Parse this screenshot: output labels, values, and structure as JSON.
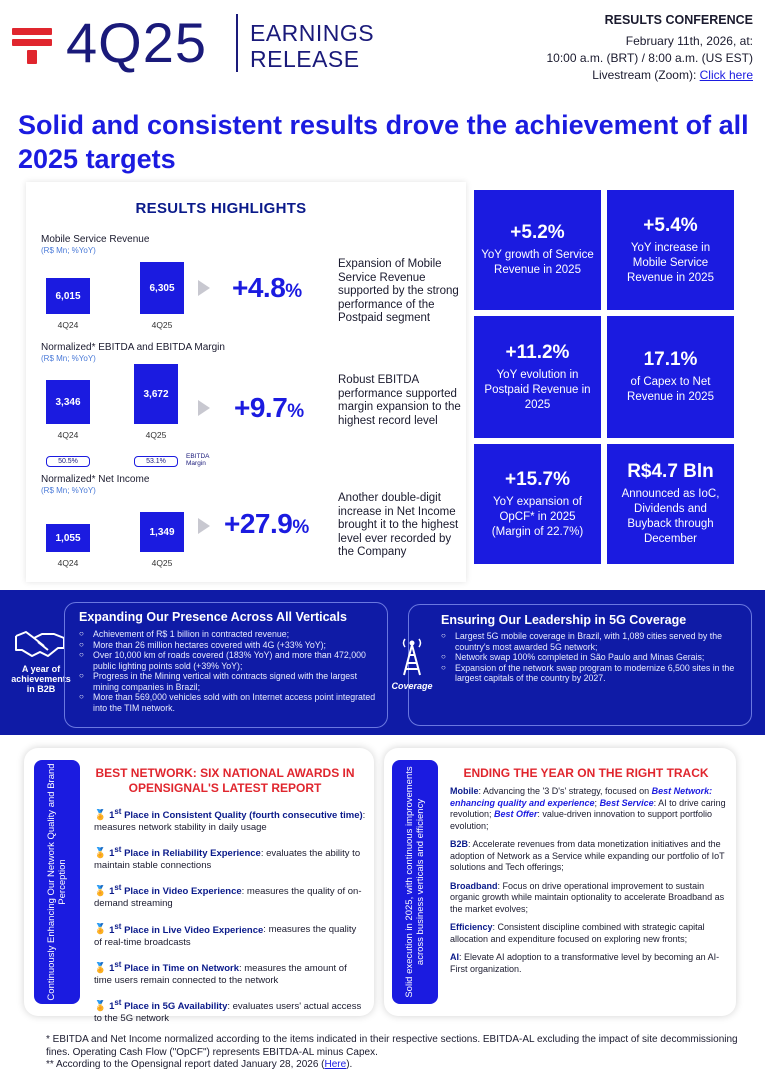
{
  "header": {
    "quarter": "4Q25",
    "release_line1": "EARNINGS",
    "release_line2": "RELEASE",
    "conference_title": "RESULTS CONFERENCE",
    "conference_date": "February 11th, 2026, at:",
    "conference_time": "10:00 a.m. (BRT) / 8:00 a.m. (US EST)",
    "livestream": "Livestream (Zoom): ",
    "livestream_link": "Click here"
  },
  "headline": "Solid and consistent results drove the achievement of all 2025 targets",
  "highlights": {
    "title": "RESULTS HIGHLIGHTS",
    "metrics": [
      {
        "title": "Mobile Service Revenue",
        "sub": "(R$ Mn; %YoY)",
        "bars": [
          {
            "label": "4Q24",
            "value": "6,015"
          },
          {
            "label": "4Q25",
            "value": "6,305"
          }
        ],
        "growth": "+4.8",
        "pct": "%",
        "desc": "Expansion of Mobile Service Revenue supported by the strong performance of the Postpaid segment"
      },
      {
        "title": "Normalized* EBITDA and EBITDA Margin",
        "sub": "(R$ Mn; %YoY)",
        "bars": [
          {
            "label": "4Q24",
            "value": "3,346",
            "margin": "50.5%"
          },
          {
            "label": "4Q25",
            "value": "3,672",
            "margin": "53.1%"
          }
        ],
        "margin_label": "EBITDA Margin",
        "growth": "+9.7",
        "pct": "%",
        "desc": "Robust EBITDA performance supported margin expansion to the highest record level"
      },
      {
        "title": "Normalized* Net Income",
        "sub": "(R$ Mn; %YoY)",
        "bars": [
          {
            "label": "4Q24",
            "value": "1,055"
          },
          {
            "label": "4Q25",
            "value": "1,349"
          }
        ],
        "growth": "+27.9",
        "pct": "%",
        "desc": "Another double-digit increase in Net Income brought it to the highest level ever recorded by the Company"
      }
    ]
  },
  "tiles": [
    {
      "value": "+5.2%",
      "desc": "YoY growth of Service Revenue in 2025"
    },
    {
      "value": "+5.4%",
      "desc": "YoY increase in Mobile Service Revenue in 2025"
    },
    {
      "value": "+11.2%",
      "desc": "YoY evolution in Postpaid Revenue in 2025"
    },
    {
      "value": "17.1%",
      "desc": "of Capex to Net Revenue in 2025"
    },
    {
      "value": "+15.7%",
      "desc": "YoY expansion of OpCF* in 2025 (Margin of 22.7%)"
    },
    {
      "value": "R$4.7 Bln",
      "desc": "Announced as IoC, Dividends and Buyback through December"
    }
  ],
  "band": {
    "left_label": "A year of achievements in B2B",
    "left_title": "Expanding Our Presence Across All Verticals",
    "left_items": [
      "Achievement of R$ 1 billion in contracted revenue;",
      "More than 26 million hectares covered with 4G (+33% YoY);",
      "Over 10,000 km of roads covered (183% YoY) and more than 472,000 public lighting points sold (+39% YoY);",
      "Progress in the Mining vertical with contracts signed with the largest mining companies in Brazil;",
      "More than 569,000 vehicles sold with on Internet access point integrated into the TIM network."
    ],
    "right_label": "Coverage",
    "right_title": "Ensuring Our Leadership in 5G Coverage",
    "right_items": [
      "Largest 5G mobile coverage in Brazil, with 1,089 cities served by the country's most awarded 5G network;",
      "Network swap 100% completed in São Paulo and Minas Gerais;",
      "Expansion of the network swap program to modernize 6,500 sites in the largest capitals of the country by 2027."
    ]
  },
  "awards": {
    "strip": "Continuously Enhancing Our Network Quality and Brand Perception",
    "title": "BEST NETWORK: SIX NATIONAL AWARDS IN OPENSIGNAL'S LATEST REPORT",
    "place": "1",
    "sup": "st",
    "items": [
      {
        "name": "Place in Consistent Quality (fourth consecutive time)",
        "desc": ": measures network stability in daily usage"
      },
      {
        "name": "Place in Reliability Experience",
        "desc": ": evaluates the ability to maintain stable connections"
      },
      {
        "name": "Place in Video Experience",
        "desc": ": measures the quality of on-demand streaming"
      },
      {
        "name": "Place in Live Video Experience",
        "desc": ": measures the quality of real-time broadcasts"
      },
      {
        "name": "Place in Time on Network",
        "desc": ": measures the amount of time users remain connected to the network"
      },
      {
        "name": "Place in 5G Availability",
        "desc": ": evaluates users' actual access to the 5G network"
      }
    ]
  },
  "ending": {
    "strip": "Solid execution in 2025, with continuous improvements across business verticals and efficiency",
    "title": "ENDING THE YEAR ON THE RIGHT TRACK",
    "mobile_label": "Mobile",
    "mobile_a": ": Advancing the '3 D's' strategy, focused on ",
    "mobile_b": "Best Network: enhancing quality and experience",
    "mobile_c": "; ",
    "mobile_d": "Best Service",
    "mobile_e": ": AI to drive caring revolution; ",
    "mobile_f": "Best Offer",
    "mobile_g": ": value-driven innovation to support portfolio evolution;",
    "b2b_label": "B2B",
    "b2b": ": Accelerate revenues from data monetization initiatives and the adoption of Network as a Service while expanding our portfolio of IoT solutions and Tech offerings;",
    "broadband_label": "Broadband",
    "broadband": ": Focus on drive operational improvement to sustain organic growth while maintain optionality to accelerate Broadband as the market evolves;",
    "efficiency_label": "Efficiency",
    "efficiency": ": Consistent discipline combined with strategic capital allocation and expenditure focused on exploring new fronts;",
    "ai_label": "AI",
    "ai": ": Elevate AI adoption to a transformative level by becoming an AI-First organization."
  },
  "footnotes": {
    "f1": "* EBITDA and Net Income normalized according to the items indicated in their respective sections. EBITDA-AL excluding the impact of site decommissioning fines. Operating Cash Flow (\"OpCF\") represents EBITDA-AL minus Capex.",
    "f2": "** According to the Opensignal report dated January 28, 2026 (",
    "f2_link": "Here",
    "f2_end": ")."
  }
}
